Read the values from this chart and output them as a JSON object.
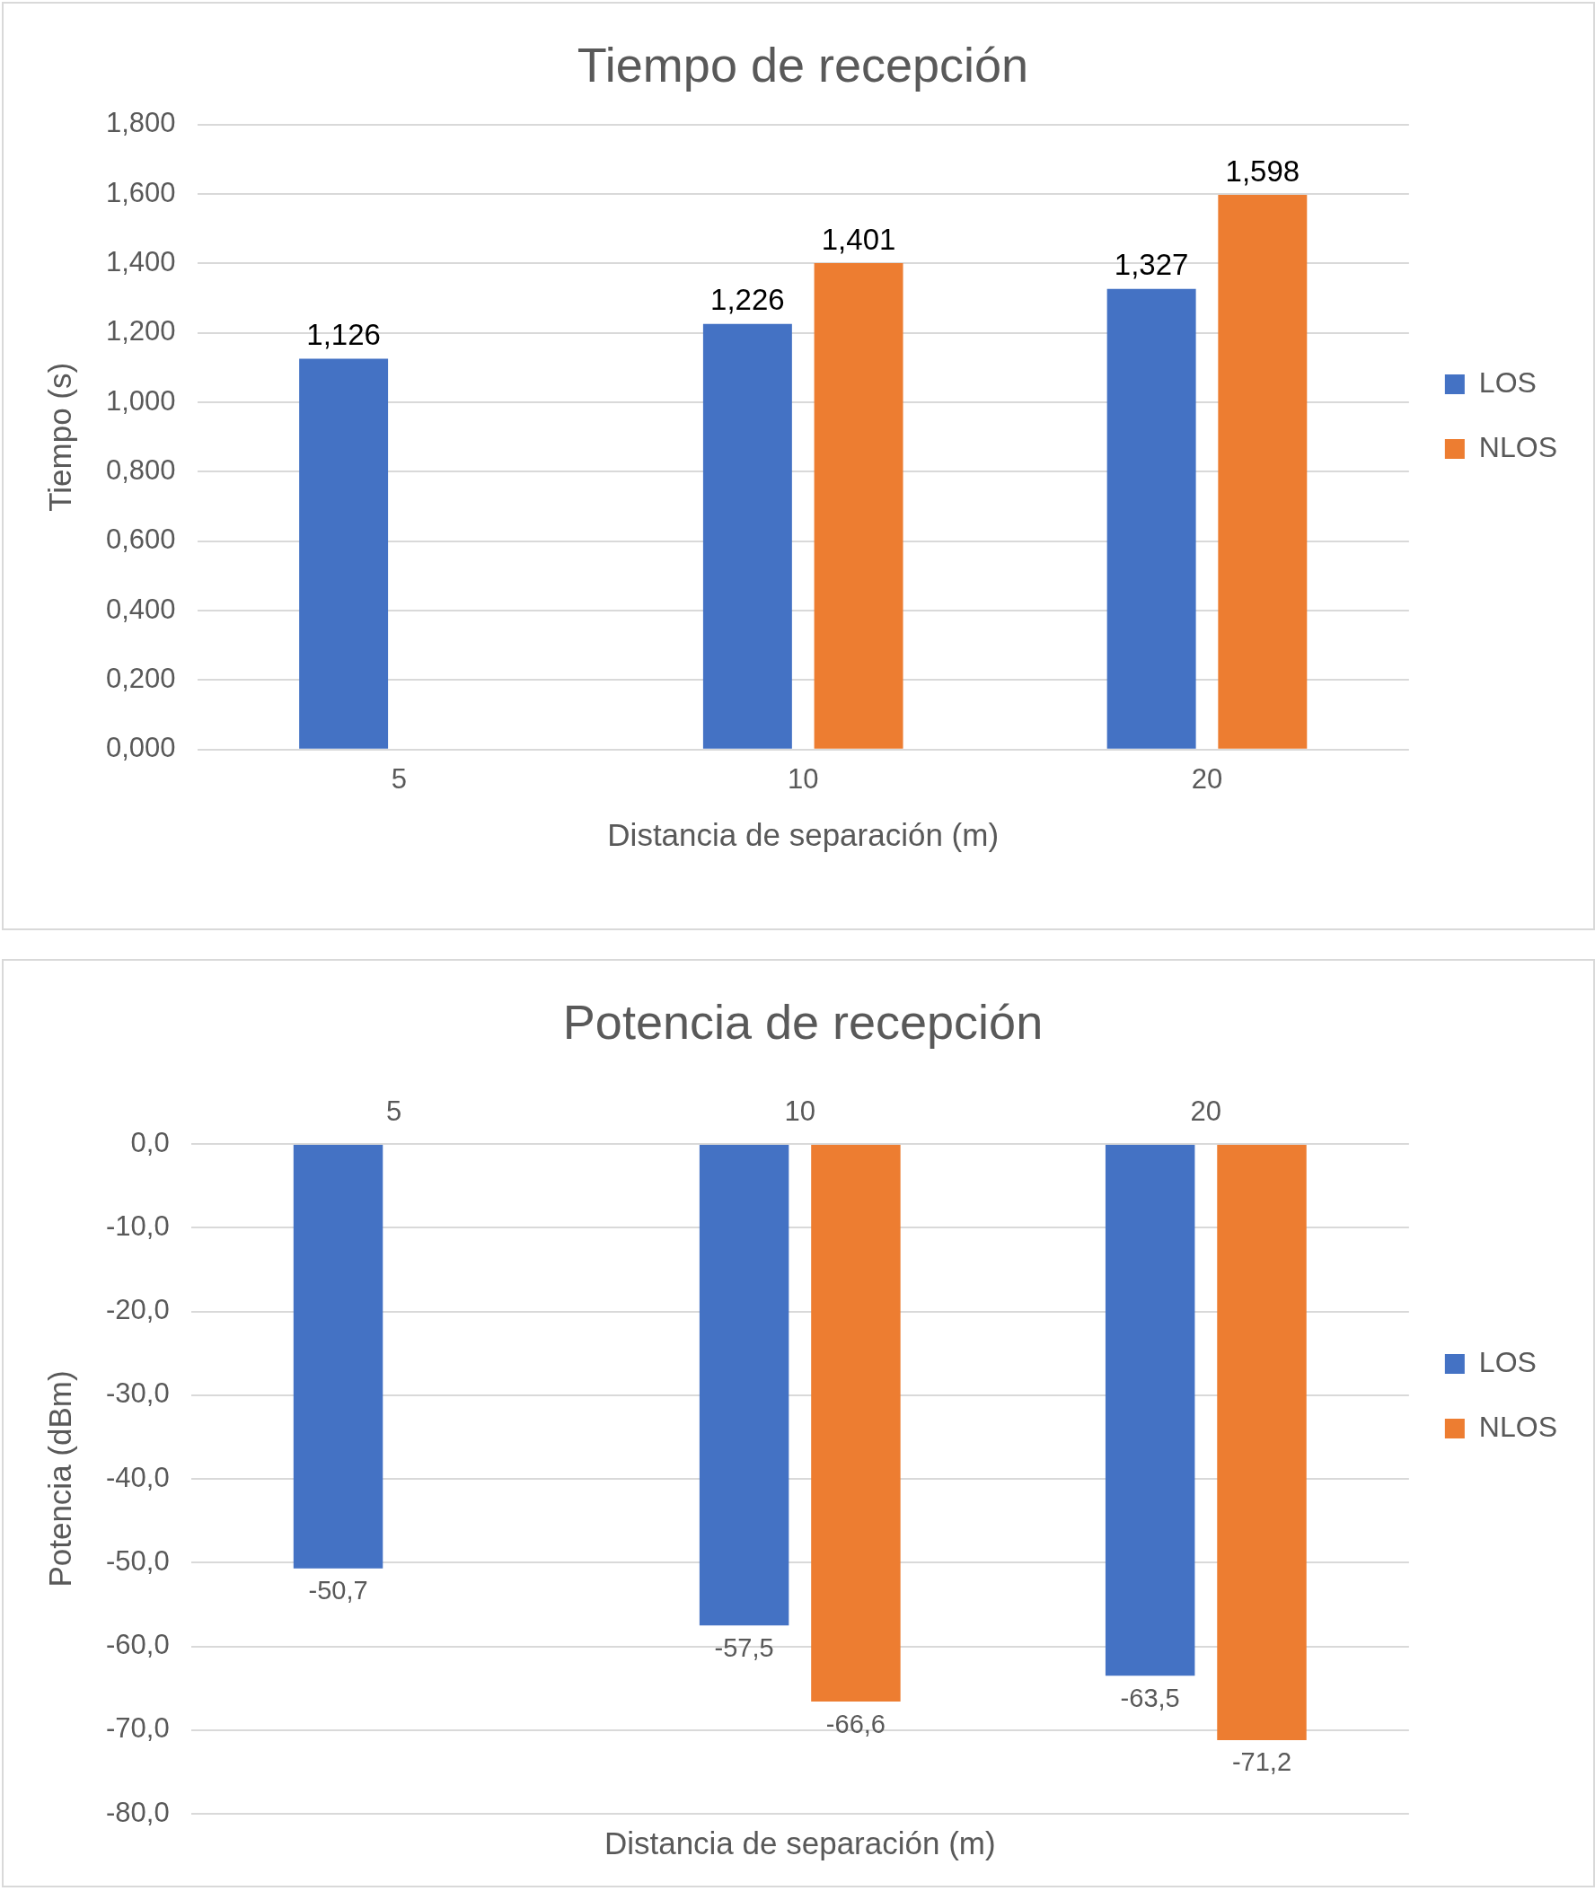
{
  "chart_data": [
    {
      "type": "bar",
      "title": "Tiempo de recepción",
      "xlabel": "Distancia de separación (m)",
      "ylabel": "Tiempo (s)",
      "categories": [
        "5",
        "10",
        "20"
      ],
      "series": [
        {
          "name": "LOS",
          "color": "#4472c4",
          "values": [
            1.126,
            1.226,
            1.327
          ],
          "value_labels": [
            "1,126",
            "1,226",
            "1,327"
          ]
        },
        {
          "name": "NLOS",
          "color": "#ed7d31",
          "values": [
            null,
            1.401,
            1.598
          ],
          "value_labels": [
            null,
            "1,401",
            "1,598"
          ]
        }
      ],
      "ylim": [
        0,
        1.8
      ],
      "yticks": [
        {
          "value": 0,
          "label": "0,000"
        },
        {
          "value": 0.2,
          "label": "0,200"
        },
        {
          "value": 0.4,
          "label": "0,400"
        },
        {
          "value": 0.6,
          "label": "0,600"
        },
        {
          "value": 0.8,
          "label": "0,800"
        },
        {
          "value": 1,
          "label": "1,000"
        },
        {
          "value": 1.2,
          "label": "1,200"
        },
        {
          "value": 1.4,
          "label": "1,400"
        },
        {
          "value": 1.6,
          "label": "1,600"
        },
        {
          "value": 1.8,
          "label": "1,800"
        }
      ],
      "grid": "y",
      "legend": "right"
    },
    {
      "type": "bar",
      "title": "Potencia de recepción",
      "xlabel": "Distancia de separación (m)",
      "ylabel": "Potencia (dBm)",
      "categories": [
        "5",
        "10",
        "20"
      ],
      "series": [
        {
          "name": "LOS",
          "color": "#4472c4",
          "values": [
            -50.7,
            -57.5,
            -63.5
          ],
          "value_labels": [
            "-50,7",
            "-57,5",
            "-63,5"
          ]
        },
        {
          "name": "NLOS",
          "color": "#ed7d31",
          "values": [
            null,
            -66.6,
            -71.2
          ],
          "value_labels": [
            null,
            "-66,6",
            "-71,2"
          ]
        }
      ],
      "ylim": [
        -80,
        0
      ],
      "yticks": [
        {
          "value": -80,
          "label": "-80,0"
        },
        {
          "value": -70,
          "label": "-70,0"
        },
        {
          "value": -60,
          "label": "-60,0"
        },
        {
          "value": -50,
          "label": "-50,0"
        },
        {
          "value": -40,
          "label": "-40,0"
        },
        {
          "value": -30,
          "label": "-30,0"
        },
        {
          "value": -20,
          "label": "-20,0"
        },
        {
          "value": -10,
          "label": "-10,0"
        },
        {
          "value": 0,
          "label": "0,0"
        }
      ],
      "grid": "y",
      "legend": "right"
    }
  ]
}
